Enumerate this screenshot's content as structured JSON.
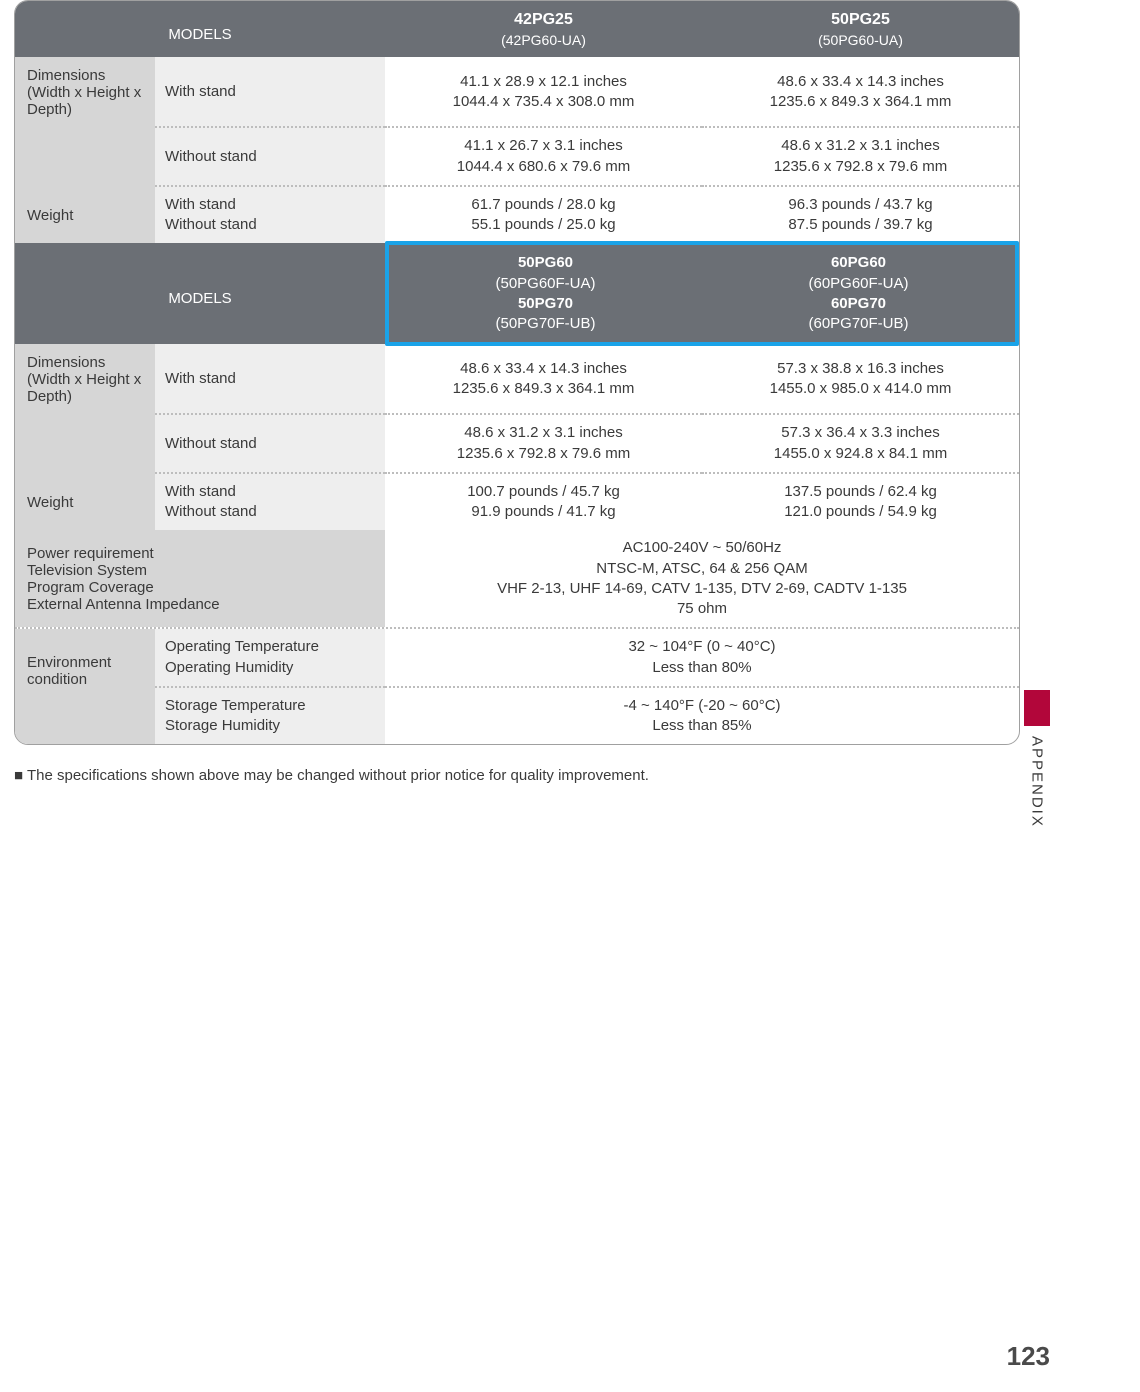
{
  "colors": {
    "header_bg": "#6b6f75",
    "header_text": "#ffffff",
    "row_grey": "#d6d6d6",
    "row_light": "#eeeeee",
    "highlight_border": "#1aa3e8",
    "accent_red": "#b2063a",
    "text": "#3a3a3a",
    "dotted": "#bdbdbd"
  },
  "header1": {
    "models_label": "MODELS",
    "colA_main": "42PG25",
    "colA_sub": "(42PG60-UA)",
    "colB_main": "50PG25",
    "colB_sub": "(50PG60-UA)"
  },
  "section1": {
    "dimensions_label": "Dimensions (Width x Height x Depth)",
    "with_stand": "With stand",
    "without_stand": "Without stand",
    "ws_A_in": "41.1 x 28.9 x 12.1 inches",
    "ws_A_mm": "1044.4 x 735.4 x 308.0 mm",
    "ws_B_in": "48.6 x 33.4 x 14.3 inches",
    "ws_B_mm": "1235.6 x 849.3 x 364.1 mm",
    "wos_A_in": "41.1 x 26.7 x 3.1 inches",
    "wos_A_mm": "1044.4 x 680.6 x 79.6 mm",
    "wos_B_in": "48.6 x 31.2 x 3.1 inches",
    "wos_B_mm": "1235.6 x 792.8 x 79.6 mm",
    "weight_label": "Weight",
    "w_ws_A": "61.7 pounds / 28.0 kg",
    "w_wos_A": "55.1 pounds / 25.0 kg",
    "w_ws_B": "96.3 pounds / 43.7 kg",
    "w_wos_B": "87.5 pounds / 39.7 kg"
  },
  "header2": {
    "models_label": "MODELS",
    "colA_l1_bold": "50PG60",
    "colA_l1_rest": " (50PG60F-UA)",
    "colA_l2_bold": "50PG70",
    "colA_l2_rest": " (50PG70F-UB)",
    "colB_l1_bold": "60PG60",
    "colB_l1_rest": " (60PG60F-UA)",
    "colB_l2_bold": "60PG70",
    "colB_l2_rest": " (60PG70F-UB)"
  },
  "section2": {
    "dimensions_label": "Dimensions (Width x Height x Depth)",
    "with_stand": "With stand",
    "without_stand": "Without stand",
    "ws_A_in": "48.6 x 33.4 x 14.3 inches",
    "ws_A_mm": "1235.6 x 849.3 x 364.1 mm",
    "ws_B_in": "57.3 x 38.8 x 16.3 inches",
    "ws_B_mm": "1455.0 x 985.0 x 414.0 mm",
    "wos_A_in": "48.6 x 31.2 x 3.1 inches",
    "wos_A_mm": "1235.6 x 792.8 x 79.6 mm",
    "wos_B_in": "57.3 x 36.4 x 3.3 inches",
    "wos_B_mm": "1455.0 x 924.8 x 84.1 mm",
    "weight_label": "Weight",
    "w_ws_A": "100.7 pounds / 45.7 kg",
    "w_wos_A": "91.9 pounds / 41.7 kg",
    "w_ws_B": "137.5 pounds / 62.4 kg",
    "w_wos_B": "121.0 pounds / 54.9 kg"
  },
  "general": {
    "labels": {
      "power": "Power requirement",
      "tv": "Television System",
      "program": "Program Coverage",
      "antenna": "External Antenna Impedance"
    },
    "values": {
      "power": "AC100-240V ~ 50/60Hz",
      "tv": "NTSC-M, ATSC, 64 & 256 QAM",
      "program": "VHF 2-13, UHF 14-69, CATV 1-135, DTV 2-69, CADTV 1-135",
      "antenna": "75 ohm"
    }
  },
  "env": {
    "label": "Environment condition",
    "op_temp_label": "Operating Temperature",
    "op_hum_label": "Operating Humidity",
    "op_temp_val": "32 ~ 104°F (0 ~ 40°C)",
    "op_hum_val": "Less than 80%",
    "st_temp_label": "Storage Temperature",
    "st_hum_label": "Storage Humidity",
    "st_temp_val": "-4 ~ 140°F (-20 ~ 60°C)",
    "st_hum_val": "Less than 85%"
  },
  "footnote": "■ The specifications shown above may be changed without prior notice for quality improvement.",
  "side_tab": "APPENDIX",
  "page_number": "123"
}
